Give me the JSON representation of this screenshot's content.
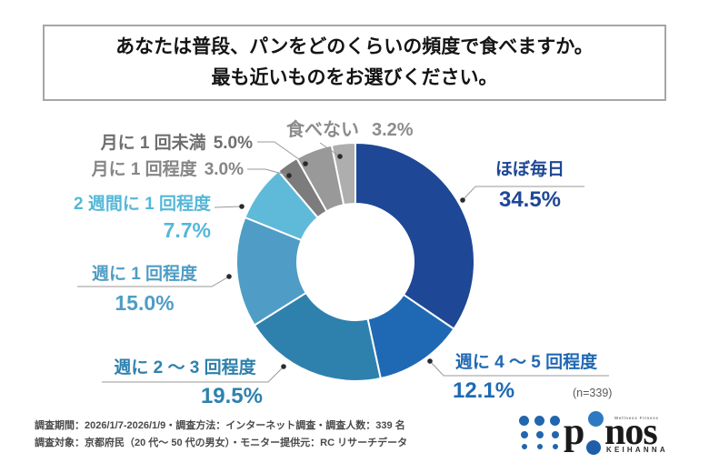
{
  "title": {
    "line1": "あなたは普段、パンをどのくらいの頻度で食べますか。",
    "line2": "最も近いものをお選びください。"
  },
  "chart_data": {
    "type": "pie",
    "subtype": "donut",
    "start_angle_deg": 0,
    "direction": "clockwise",
    "sample_size_label": "(n=339)",
    "leader_line_color": "#999999",
    "dot_color": "#2b2b2b",
    "gap_color": "#ffffff",
    "segments": [
      {
        "label": "ほぼ毎日",
        "value": 34.5,
        "value_label": "34.5%",
        "color": "#1e4796",
        "label_color": "#1e4796"
      },
      {
        "label": "週に 4 ～ 5 回程度",
        "value": 12.1,
        "value_label": "12.1%",
        "color": "#1f69b4",
        "label_color": "#1f69b4"
      },
      {
        "label": "週に 2 ～ 3 回程度",
        "value": 19.5,
        "value_label": "19.5%",
        "color": "#2e81ad",
        "label_color": "#2e81ad"
      },
      {
        "label": "週に 1 回程度",
        "value": 15.0,
        "value_label": "15.0%",
        "color": "#4f9dc6",
        "label_color": "#4f9dc6"
      },
      {
        "label": "2 週間に 1 回程度",
        "value": 7.7,
        "value_label": "7.7%",
        "color": "#5fbada",
        "label_color": "#56b7d8"
      },
      {
        "label": "月に 1 回程度",
        "value": 3.0,
        "value_label": "3.0%",
        "color": "#7c7c7c",
        "label_color": "#868686"
      },
      {
        "label": "月に 1 回未満",
        "value": 5.0,
        "value_label": "5.0%",
        "color": "#999999",
        "label_color": "#6f6f6f"
      },
      {
        "label": "食べない",
        "value": 3.2,
        "value_label": "3.2%",
        "color": "#aeaeae",
        "label_color": "#8c8c8c"
      }
    ]
  },
  "footer": {
    "line1": "調査期間：2026/1/7-2026/1/9・調査方法：インターネット調査・調査人数：339 名",
    "line2": "調査対象：京都府民（20 代～ 50 代の男女）・モニター提供元：RC リサーチデータ"
  },
  "logo": {
    "brand_p": "p",
    "brand_nos": "nos",
    "tagline": "Wellness Fitness",
    "region": "KEIHANNA",
    "dot_color": "#2166ae",
    "text_color": "#1a1a1a"
  }
}
